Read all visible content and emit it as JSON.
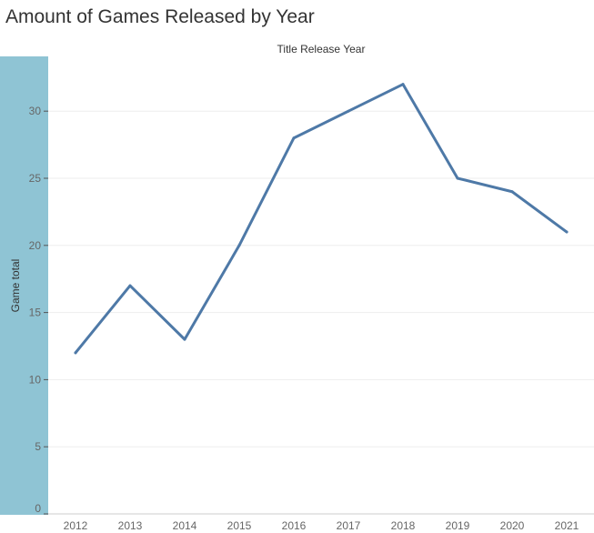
{
  "header": {
    "title": "Amount of Games Released by Year"
  },
  "chart_data": {
    "type": "line",
    "title": "Amount of Games Released by Year",
    "xlabel": "Title Release Year",
    "ylabel": "Game total",
    "categories": [
      "2012",
      "2013",
      "2014",
      "2015",
      "2016",
      "2017",
      "2018",
      "2019",
      "2020",
      "2021"
    ],
    "series": [
      {
        "values": [
          12,
          17,
          13,
          20,
          28,
          30,
          32,
          25,
          24,
          21
        ]
      }
    ],
    "yticks": [
      "0",
      "5",
      "10",
      "15",
      "20",
      "25",
      "30"
    ],
    "ylim": [
      0,
      33
    ],
    "grid": true,
    "legend": "none",
    "colors": {
      "line": "#4e79a7",
      "axis_band": "#8fc4d4",
      "grid": "#eeeeee"
    }
  }
}
